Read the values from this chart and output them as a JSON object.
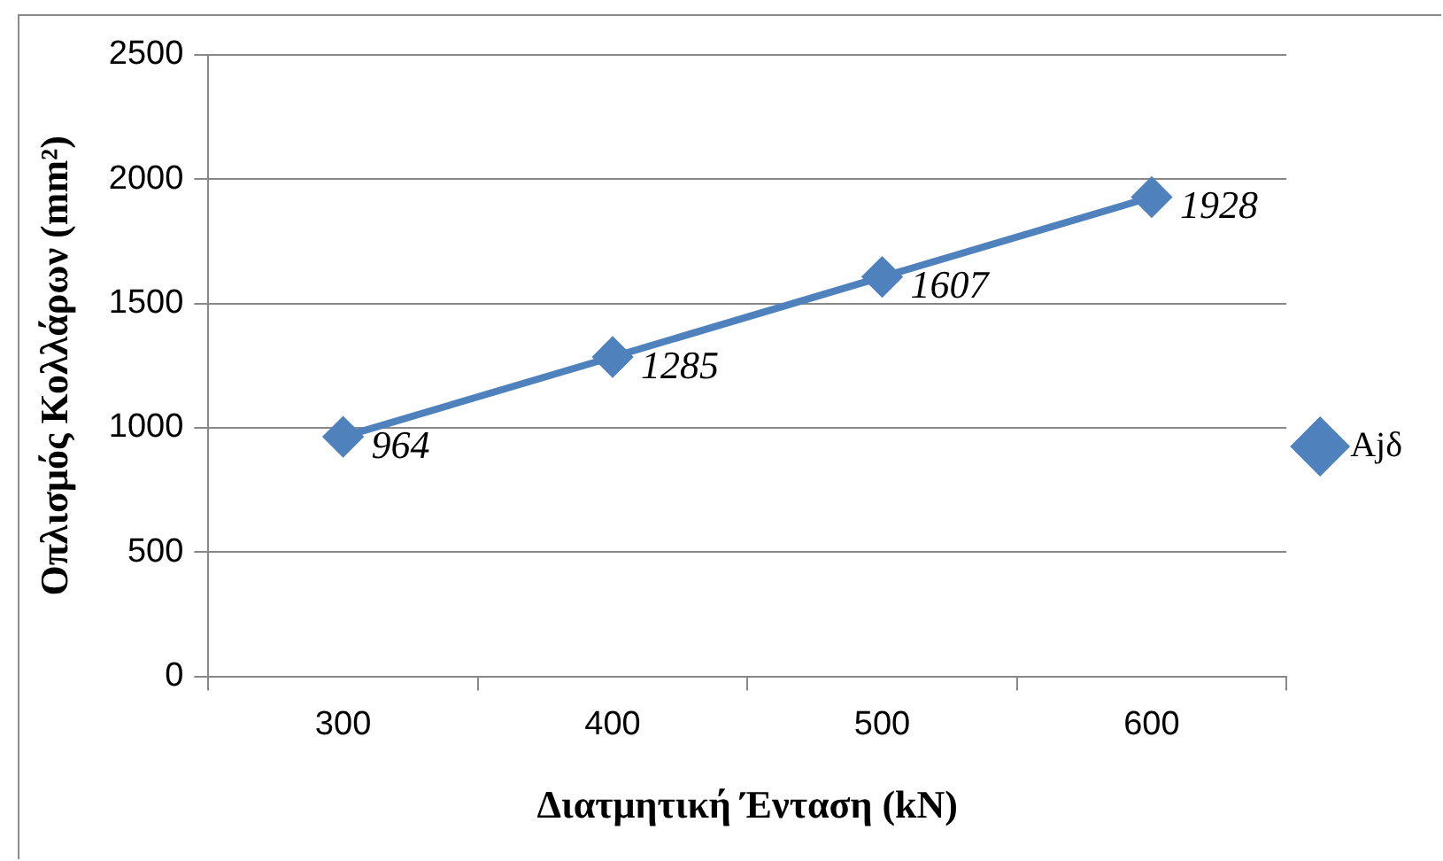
{
  "chart_data": {
    "type": "line",
    "xlabel": "Διατμητική Ένταση (kN)",
    "ylabel": "Οπλισμός Κολλάρων (mm²)",
    "categories": [
      "300",
      "400",
      "500",
      "600"
    ],
    "series": [
      {
        "name": "Ajδ",
        "color": "#4f81bd",
        "values": [
          964,
          1285,
          1607,
          1928
        ]
      }
    ],
    "ylim": [
      0,
      2500
    ],
    "yticks": [
      0,
      500,
      1000,
      1500,
      2000,
      2500
    ],
    "grid": "y",
    "legend": "right",
    "marker": "diamond",
    "line_style": "solid",
    "data_labels": true
  }
}
